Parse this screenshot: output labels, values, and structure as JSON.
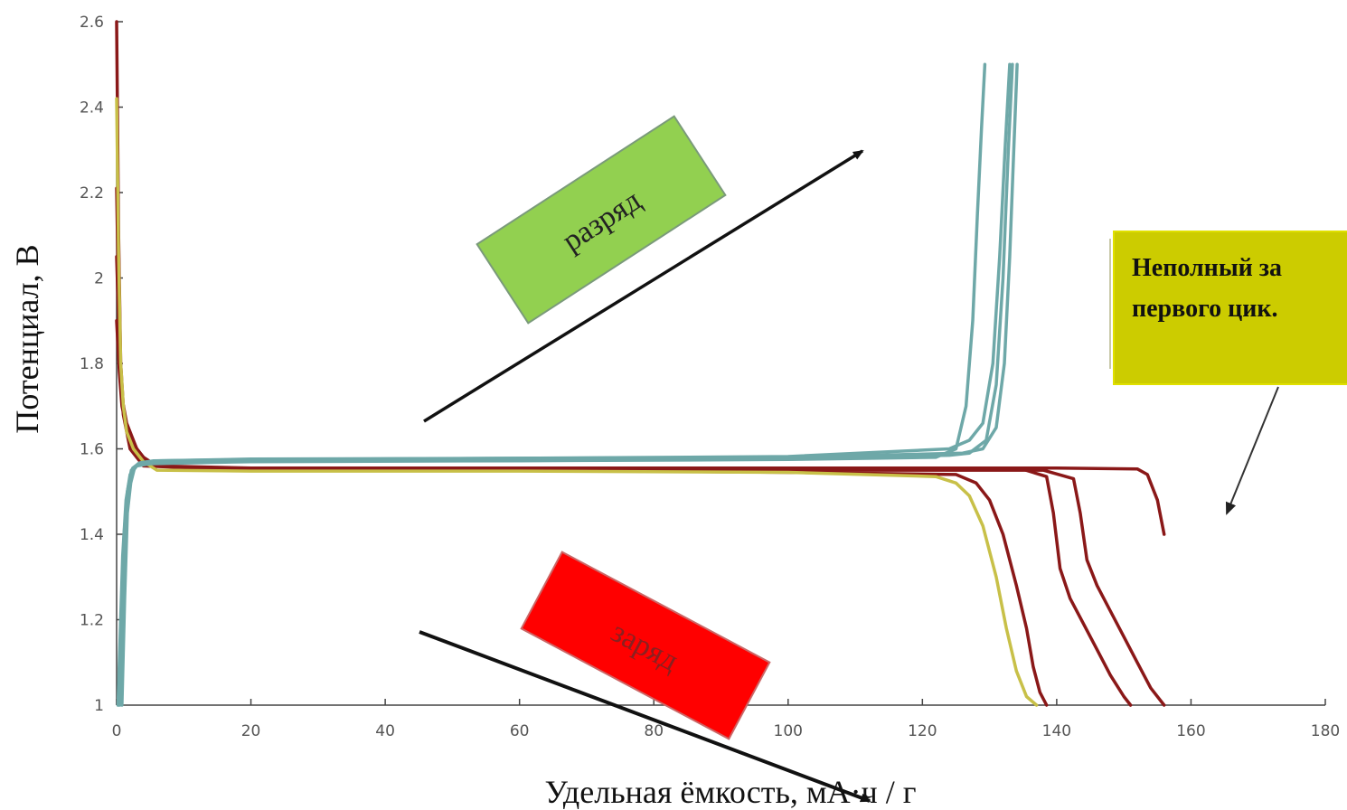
{
  "chart_data": {
    "type": "line",
    "xlabel": "Удельная ёмкость, мА·ч / г",
    "ylabel": "Потенциал, В",
    "xlim": [
      0,
      180
    ],
    "ylim": [
      1,
      2.6
    ],
    "xticks": [
      0,
      20,
      40,
      60,
      80,
      100,
      120,
      140,
      160,
      180
    ],
    "yticks": [
      1,
      1.2,
      1.4,
      1.6,
      1.8,
      2,
      2.2,
      2.4,
      2.6
    ],
    "ytick_labels": [
      "1",
      "1.2",
      "1.4",
      "1.6",
      "1.8",
      "2",
      "2.2",
      "2.4",
      "2.6"
    ],
    "grid": false,
    "series": [
      {
        "color": "#8a1818",
        "x": [
          0,
          0.3,
          0.6,
          1,
          1.5,
          2.5,
          4,
          6,
          20,
          60,
          100,
          140,
          152,
          153.5,
          155,
          156
        ],
        "y": [
          2.6,
          2.1,
          1.8,
          1.7,
          1.65,
          1.61,
          1.58,
          1.56,
          1.555,
          1.555,
          1.555,
          1.555,
          1.553,
          1.54,
          1.48,
          1.4
        ]
      },
      {
        "color": "#8a1818",
        "x": [
          0,
          0.4,
          0.8,
          1.5,
          3,
          5,
          20,
          60,
          100,
          135,
          138.5,
          139.5,
          140.5,
          142,
          144,
          146,
          148,
          150,
          151
        ],
        "y": [
          2.21,
          1.85,
          1.72,
          1.66,
          1.6,
          1.56,
          1.553,
          1.553,
          1.553,
          1.552,
          1.535,
          1.45,
          1.32,
          1.25,
          1.19,
          1.13,
          1.07,
          1.02,
          1.0
        ]
      },
      {
        "color": "#8a1818",
        "x": [
          0,
          0.4,
          0.8,
          1.5,
          3,
          5,
          20,
          60,
          100,
          138,
          142.5,
          143.5,
          144.5,
          146,
          148,
          150,
          152,
          154,
          156
        ],
        "y": [
          1.9,
          1.78,
          1.7,
          1.65,
          1.6,
          1.56,
          1.55,
          1.55,
          1.55,
          1.55,
          1.53,
          1.45,
          1.34,
          1.28,
          1.22,
          1.16,
          1.1,
          1.04,
          1.0
        ]
      },
      {
        "color": "#8a1818",
        "x": [
          0,
          0.5,
          1,
          2,
          4,
          20,
          60,
          100,
          125,
          128,
          130,
          132,
          134,
          135.5,
          136.5,
          137.5,
          138.5
        ],
        "y": [
          2.05,
          1.8,
          1.68,
          1.6,
          1.56,
          1.55,
          1.55,
          1.545,
          1.54,
          1.52,
          1.48,
          1.4,
          1.28,
          1.18,
          1.09,
          1.03,
          1.0
        ]
      },
      {
        "color": "#c8c048",
        "x": [
          0,
          0.3,
          0.6,
          1,
          1.5,
          2.5,
          4,
          6,
          20,
          60,
          100,
          122,
          125,
          127,
          129,
          131,
          132.5,
          134,
          135.5,
          137
        ],
        "y": [
          2.42,
          2.05,
          1.8,
          1.7,
          1.64,
          1.6,
          1.57,
          1.55,
          1.548,
          1.548,
          1.545,
          1.535,
          1.52,
          1.49,
          1.42,
          1.3,
          1.18,
          1.08,
          1.02,
          1.0
        ]
      },
      {
        "color": "#6ea8a8",
        "x": [
          0.2,
          0.5,
          0.9,
          1.4,
          2,
          3,
          5,
          20,
          60,
          100,
          122,
          125,
          126.5,
          127.5,
          128.2,
          128.8,
          129.3
        ],
        "y": [
          1.0,
          1.15,
          1.35,
          1.48,
          1.54,
          1.56,
          1.565,
          1.57,
          1.572,
          1.575,
          1.58,
          1.6,
          1.7,
          1.9,
          2.15,
          2.35,
          2.5
        ]
      },
      {
        "color": "#6ea8a8",
        "x": [
          0.3,
          0.7,
          1.1,
          1.6,
          2.2,
          3.2,
          5,
          20,
          60,
          100,
          124,
          127,
          129.5,
          131,
          132,
          132.8,
          133.4
        ],
        "y": [
          1.0,
          1.2,
          1.4,
          1.5,
          1.55,
          1.565,
          1.57,
          1.572,
          1.575,
          1.578,
          1.585,
          1.59,
          1.62,
          1.75,
          2.0,
          2.3,
          2.5
        ]
      },
      {
        "color": "#6ea8a8",
        "x": [
          0.5,
          0.9,
          1.3,
          1.8,
          2.4,
          3.4,
          5.5,
          20,
          60,
          100,
          126,
          129,
          131,
          132.2,
          133,
          133.6,
          134.1
        ],
        "y": [
          1.0,
          1.22,
          1.42,
          1.51,
          1.555,
          1.567,
          1.572,
          1.575,
          1.578,
          1.58,
          1.59,
          1.6,
          1.65,
          1.8,
          2.05,
          2.3,
          2.5
        ]
      },
      {
        "color": "#6ea8a8",
        "x": [
          0.8,
          1.2,
          1.6,
          2.1,
          2.7,
          3.7,
          6,
          20,
          60,
          100,
          124,
          127,
          129,
          130.5,
          131.5,
          132.3,
          133
        ],
        "y": [
          1.0,
          1.25,
          1.45,
          1.52,
          1.558,
          1.568,
          1.572,
          1.576,
          1.578,
          1.582,
          1.6,
          1.62,
          1.66,
          1.8,
          2.05,
          2.3,
          2.5
        ]
      }
    ]
  },
  "annotations": {
    "discharge_label": "разряд",
    "charge_label": "заряд",
    "note_line1": "Неполный за",
    "note_line2": "первого цик.",
    "discharge_box_color": "#92d050",
    "charge_box_color": "#ff0000",
    "note_box_color": "#cccc00"
  }
}
